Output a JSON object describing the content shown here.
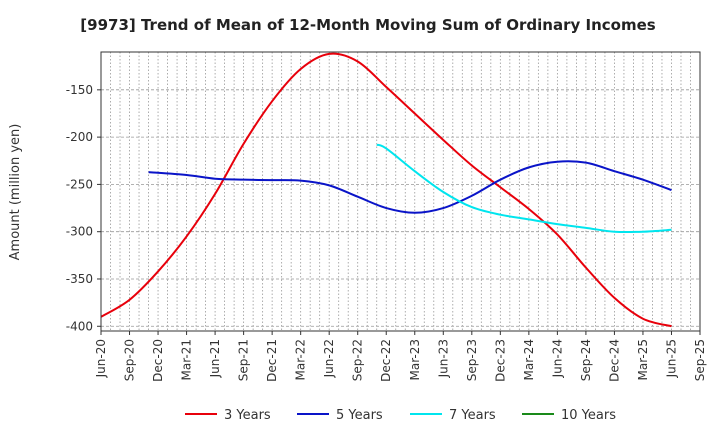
{
  "chart_data": {
    "type": "line",
    "title": "[9973]  Trend of Mean of 12-Month Moving Sum of Ordinary Incomes",
    "xlabel": "",
    "ylabel": "Amount (million yen)",
    "ylim": [
      -405,
      -110
    ],
    "yticks": [
      -150,
      -200,
      -250,
      -300,
      -350,
      -400
    ],
    "x_ticks": [
      "Jun-20",
      "Sep-20",
      "Dec-20",
      "Mar-21",
      "Jun-21",
      "Sep-21",
      "Dec-21",
      "Mar-22",
      "Jun-22",
      "Sep-22",
      "Dec-22",
      "Mar-23",
      "Jun-23",
      "Sep-23",
      "Dec-23",
      "Mar-24",
      "Jun-24",
      "Sep-24",
      "Dec-24",
      "Mar-25",
      "Jun-25",
      "Sep-25"
    ],
    "grid": true,
    "legend_position": "bottom",
    "series": [
      {
        "name": "3 Years",
        "color": "#e8000b",
        "x": [
          0,
          1,
          2,
          3,
          4,
          5,
          6,
          7,
          8,
          9,
          10,
          11,
          12,
          13,
          14,
          15,
          16,
          17,
          18,
          19,
          20
        ],
        "values": [
          -390,
          -372,
          -342,
          -305,
          -260,
          -207,
          -162,
          -128,
          -112,
          -120,
          -147,
          -175,
          -203,
          -230,
          -253,
          -276,
          -303,
          -338,
          -370,
          -392,
          -400
        ]
      },
      {
        "name": "5 Years",
        "color": "#0a14c8",
        "x": [
          1.67,
          3,
          4,
          5,
          6,
          7,
          8,
          9,
          10,
          11,
          12,
          13,
          14,
          15,
          16,
          17,
          18,
          19,
          20
        ],
        "values": [
          -237,
          -240,
          -244,
          -245,
          -245.5,
          -246,
          -251,
          -263,
          -275,
          -280,
          -275,
          -262,
          -245,
          -232,
          -226,
          -227,
          -236,
          -245,
          -256
        ]
      },
      {
        "name": "7 Years",
        "color": "#00e5ee",
        "x": [
          9.67,
          10,
          11,
          12,
          13,
          14,
          15,
          16,
          17,
          18,
          19,
          20
        ],
        "values": [
          -208,
          -212,
          -236,
          -258,
          -274,
          -282,
          -287,
          -292,
          -296,
          -300,
          -300,
          -298
        ]
      },
      {
        "name": "10 Years",
        "color": "#1a8a1a",
        "x": [],
        "values": []
      }
    ]
  }
}
